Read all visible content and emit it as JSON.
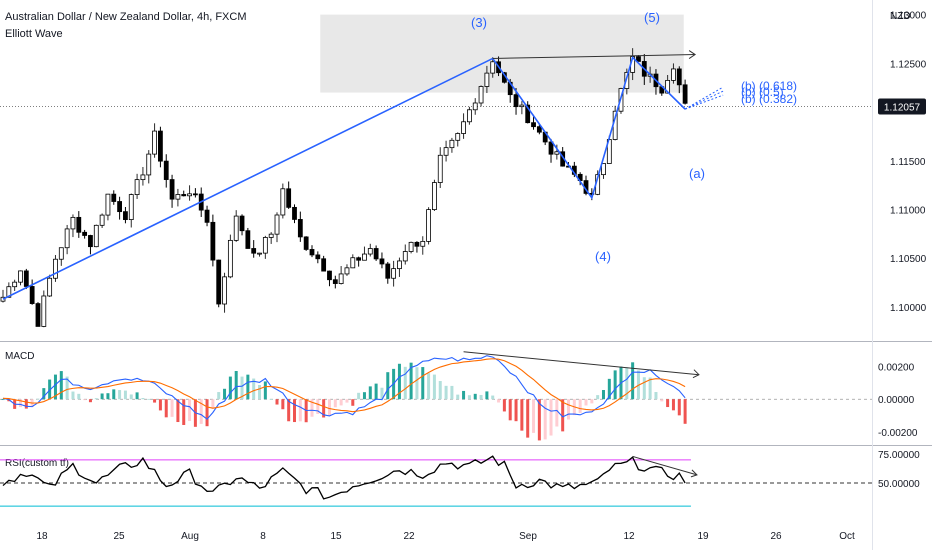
{
  "header": {
    "title": "Australian Dollar / New Zealand Dollar, 4h, FXCM",
    "indicator": "Elliott Wave",
    "currency": "NZD"
  },
  "price_pane": {
    "y_ticks": [
      "1.13000",
      "1.12500",
      "1.12057",
      "1.11500",
      "1.11000",
      "1.10500",
      "1.10000"
    ],
    "last_price": "1.12057",
    "wave_labels": [
      "(3)",
      "(5)",
      "(4)",
      "(a)"
    ],
    "fib_labels": [
      "(b) (0.618)",
      "(b) (0.5)",
      "(b) (0.382)"
    ]
  },
  "macd_pane": {
    "title": "MACD",
    "y_ticks": [
      "0.00200",
      "0.00000",
      "-0.00200"
    ]
  },
  "rsi_pane": {
    "title": "RSI(custom tf)",
    "y_ticks": [
      "75.00000",
      "50.00000"
    ]
  },
  "x_axis": {
    "labels": [
      "18",
      "25",
      "Aug",
      "8",
      "15",
      "22",
      "Sep",
      "12",
      "19",
      "26",
      "Oct"
    ]
  },
  "colors": {
    "up": "#26a69a",
    "down": "#ef5350",
    "wave": "#2962ff",
    "macd": "#2962ff",
    "signal": "#ff6d00",
    "rsi": "#000000",
    "rsi_upper": "#e040fb",
    "rsi_lower": "#00bcd4",
    "zone": "#e0e0e0"
  },
  "chart_data": {
    "type": "candlestick",
    "price_ylim": [
      1.0965,
      1.1315
    ],
    "price_anchors": [
      [
        0,
        1.101
      ],
      [
        3,
        1.104
      ],
      [
        6,
        1.0985
      ],
      [
        9,
        1.105
      ],
      [
        12,
        1.109
      ],
      [
        15,
        1.1065
      ],
      [
        18,
        1.1115
      ],
      [
        21,
        1.1095
      ],
      [
        24,
        1.114
      ],
      [
        26,
        1.1175
      ],
      [
        29,
        1.111
      ],
      [
        32,
        1.112
      ],
      [
        35,
        1.109
      ],
      [
        37,
        1.1005
      ],
      [
        40,
        1.1095
      ],
      [
        43,
        1.105
      ],
      [
        46,
        1.1075
      ],
      [
        48,
        1.112
      ],
      [
        51,
        1.107
      ],
      [
        54,
        1.105
      ],
      [
        57,
        1.1025
      ],
      [
        60,
        1.1045
      ],
      [
        63,
        1.106
      ],
      [
        66,
        1.103
      ],
      [
        69,
        1.106
      ],
      [
        72,
        1.107
      ],
      [
        75,
        1.115
      ],
      [
        78,
        1.1175
      ],
      [
        81,
        1.1215
      ],
      [
        84,
        1.1255
      ],
      [
        87,
        1.1215
      ],
      [
        90,
        1.1195
      ],
      [
        93,
        1.117
      ],
      [
        96,
        1.1145
      ],
      [
        99,
        1.113
      ],
      [
        101,
        1.1112
      ],
      [
        103,
        1.115
      ],
      [
        105,
        1.1205
      ],
      [
        108,
        1.1255
      ],
      [
        110,
        1.124
      ],
      [
        113,
        1.1225
      ],
      [
        115,
        1.125
      ],
      [
        117,
        1.1205
      ]
    ],
    "wave_points": [
      {
        "bar": 0,
        "price": 1.1008
      },
      {
        "bar": 84,
        "price": 1.1255
      },
      {
        "bar": 101,
        "price": 1.1112
      },
      {
        "bar": 108,
        "price": 1.1256
      },
      {
        "bar": 117,
        "price": 1.1203
      }
    ],
    "zone": {
      "bar_from": 69,
      "bar_to": 119,
      "price_top": 1.13,
      "price_bottom": 1.122
    },
    "resistance_line": {
      "from": {
        "bar": 84,
        "price": 1.1255
      },
      "to": {
        "bar": 117,
        "price": 1.1259
      }
    },
    "macd_ylim": [
      -0.0028,
      0.0035
    ],
    "macd_anchors": [
      [
        0,
        0.0
      ],
      [
        5,
        -0.0004
      ],
      [
        10,
        0.0012
      ],
      [
        15,
        0.0007
      ],
      [
        20,
        0.0013
      ],
      [
        25,
        0.0011
      ],
      [
        30,
        -0.0001
      ],
      [
        35,
        -0.0012
      ],
      [
        40,
        0.0008
      ],
      [
        45,
        0.0012
      ],
      [
        50,
        -0.0003
      ],
      [
        55,
        -0.0009
      ],
      [
        60,
        -0.0008
      ],
      [
        65,
        0.0001
      ],
      [
        70,
        0.002
      ],
      [
        75,
        0.0025
      ],
      [
        80,
        0.0024
      ],
      [
        84,
        0.0027
      ],
      [
        88,
        0.0014
      ],
      [
        92,
        -0.0003
      ],
      [
        96,
        -0.001
      ],
      [
        100,
        -0.0009
      ],
      [
        104,
        0.0001
      ],
      [
        108,
        0.0018
      ],
      [
        112,
        0.0016
      ],
      [
        117,
        0.0002
      ]
    ],
    "macd_divergence": {
      "from": {
        "bar": 79,
        "value": 0.0029
      },
      "to": {
        "bar": 118,
        "value": 0.0015
      }
    },
    "rsi_ylim": [
      18,
      82
    ],
    "rsi_levels": {
      "upper": 70,
      "mid": 50,
      "lower": 30
    },
    "rsi_anchors": [
      [
        0,
        50
      ],
      [
        4,
        60
      ],
      [
        8,
        45
      ],
      [
        12,
        65
      ],
      [
        16,
        50
      ],
      [
        20,
        62
      ],
      [
        24,
        70
      ],
      [
        28,
        48
      ],
      [
        32,
        58
      ],
      [
        36,
        40
      ],
      [
        40,
        55
      ],
      [
        44,
        45
      ],
      [
        48,
        60
      ],
      [
        52,
        45
      ],
      [
        56,
        38
      ],
      [
        60,
        48
      ],
      [
        64,
        55
      ],
      [
        68,
        62
      ],
      [
        72,
        58
      ],
      [
        76,
        68
      ],
      [
        80,
        64
      ],
      [
        84,
        72
      ],
      [
        86,
        65
      ],
      [
        88,
        48
      ],
      [
        92,
        52
      ],
      [
        96,
        45
      ],
      [
        100,
        48
      ],
      [
        102,
        50
      ],
      [
        104,
        62
      ],
      [
        108,
        68
      ],
      [
        112,
        60
      ],
      [
        116,
        56
      ],
      [
        117,
        52
      ]
    ],
    "rsi_divergence": {
      "from": {
        "bar": 108,
        "value": 73
      },
      "to": {
        "bar": 118,
        "value": 57
      }
    }
  }
}
